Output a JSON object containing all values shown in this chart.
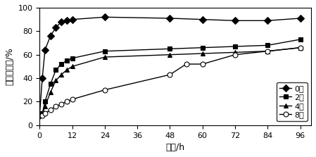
{
  "title": "",
  "xlabel": "时间/h",
  "ylabel": "累积释放量/%",
  "xlim": [
    0,
    100
  ],
  "ylim": [
    0,
    100
  ],
  "xticks": [
    0,
    12,
    24,
    36,
    48,
    60,
    72,
    84,
    96
  ],
  "yticks": [
    0,
    20,
    40,
    60,
    80,
    100
  ],
  "series": [
    {
      "label": "0层",
      "marker": "D",
      "color": "#000000",
      "markersize": 5,
      "x": [
        0,
        1,
        2,
        4,
        6,
        8,
        10,
        12,
        24,
        48,
        60,
        72,
        84,
        96
      ],
      "y": [
        8,
        40,
        64,
        76,
        83,
        88,
        89,
        90,
        92,
        91,
        90,
        89,
        89,
        91
      ]
    },
    {
      "label": "2层",
      "marker": "s",
      "color": "#000000",
      "markersize": 5,
      "x": [
        0,
        1,
        2,
        4,
        6,
        8,
        10,
        12,
        24,
        48,
        60,
        72,
        84,
        96
      ],
      "y": [
        8,
        10,
        20,
        35,
        47,
        52,
        55,
        57,
        63,
        65,
        66,
        67,
        68,
        73
      ]
    },
    {
      "label": "4层",
      "marker": "^",
      "color": "#000000",
      "markersize": 5,
      "x": [
        0,
        1,
        2,
        4,
        6,
        8,
        10,
        12,
        24,
        48,
        60,
        72,
        84,
        96
      ],
      "y": [
        8,
        9,
        16,
        28,
        38,
        43,
        47,
        50,
        58,
        60,
        61,
        62,
        63,
        66
      ]
    },
    {
      "label": "8层",
      "marker": "o",
      "color": "#000000",
      "markersize": 5,
      "markerfacecolor": "white",
      "x": [
        0,
        1,
        2,
        4,
        6,
        8,
        10,
        12,
        24,
        48,
        54,
        60,
        72,
        84,
        96
      ],
      "y": [
        8,
        8,
        10,
        13,
        16,
        18,
        20,
        22,
        30,
        43,
        52,
        52,
        60,
        63,
        66
      ]
    }
  ],
  "legend_loc": "lower right",
  "background_color": "#ffffff",
  "font_size": 9,
  "linewidth": 1.0
}
